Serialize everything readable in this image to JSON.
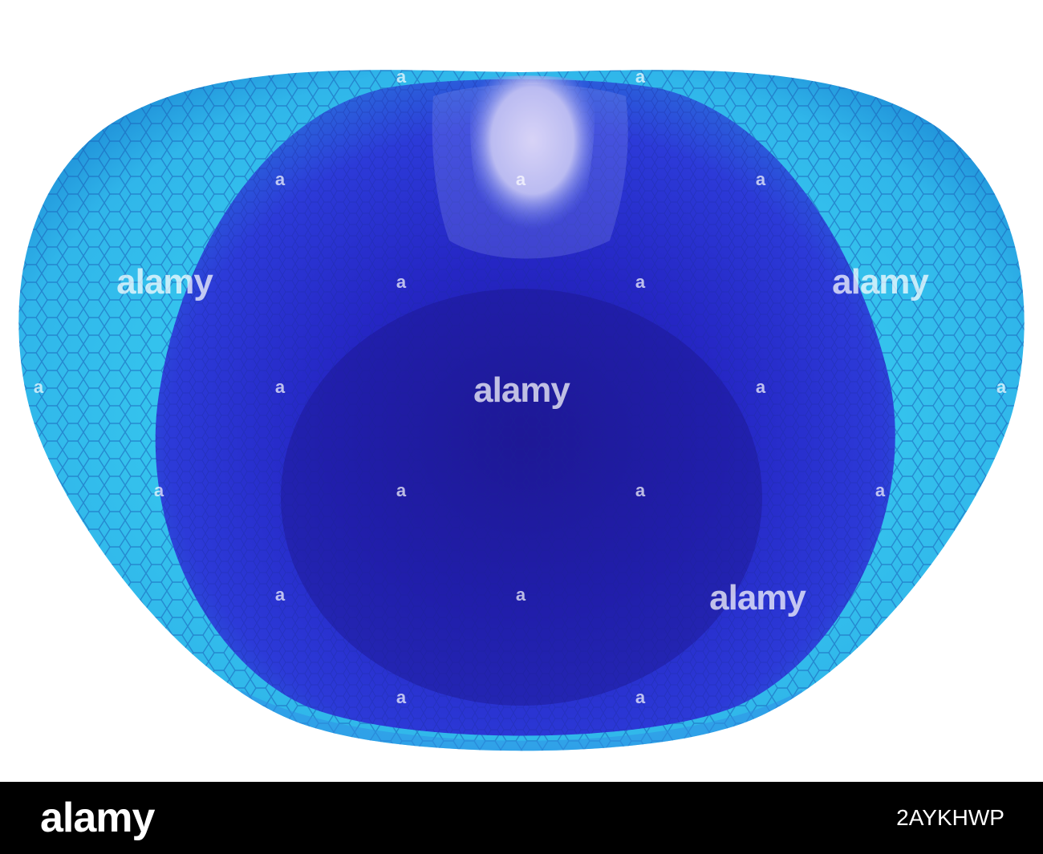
{
  "image": {
    "subject": "micrograph-specimen",
    "background_color": "#ffffff",
    "specimen_colors": {
      "outer_light": "#3ad3f0",
      "outer_mid": "#1fa6e0",
      "inner": "#2a2bd6",
      "core": "#1e179e",
      "top_highlight": "#e6d7f4"
    }
  },
  "watermarks": {
    "text": "alamy",
    "marker": "a"
  },
  "footer": {
    "background": "#000000",
    "logo": "alamy",
    "image_id": "2AYKHWP"
  }
}
